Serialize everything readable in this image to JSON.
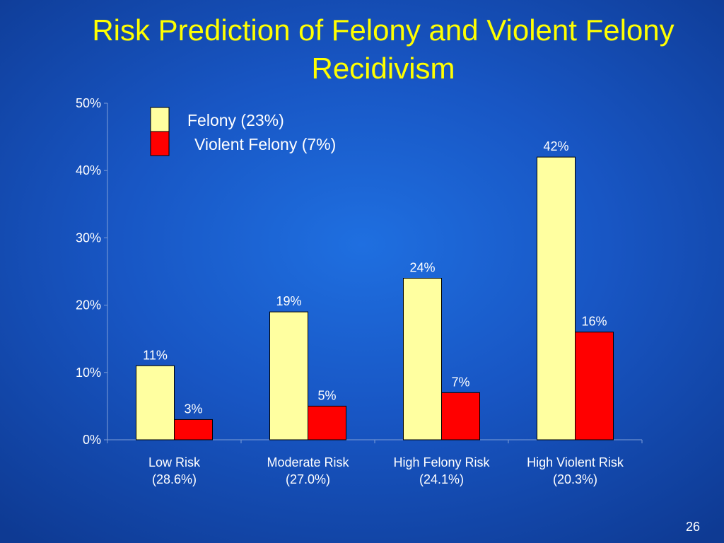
{
  "slide": {
    "title_line1": "Risk Prediction of Felony and Violent Felony",
    "title_line2": "Recidivism",
    "slide_number": "26"
  },
  "colors": {
    "title": "#ffff00",
    "text": "#ffffff",
    "felony": "#ffffa0",
    "violent_felony": "#ff0000"
  },
  "chart_data": {
    "type": "bar",
    "categories": [
      "Low Risk",
      "Moderate Risk",
      "High Felony Risk",
      "High Violent Risk"
    ],
    "category_sublabels": [
      "(28.6%)",
      "(27.0%)",
      "(24.1%)",
      "(20.3%)"
    ],
    "series": [
      {
        "name": "Felony (23%)",
        "values": [
          11,
          19,
          24,
          42
        ],
        "labels": [
          "11%",
          "19%",
          "24%",
          "42%"
        ]
      },
      {
        "name": "Violent Felony (7%)",
        "values": [
          3,
          5,
          7,
          16
        ],
        "labels": [
          "3%",
          "5%",
          "7%",
          "16%"
        ]
      }
    ],
    "y_ticks": [
      "0%",
      "10%",
      "20%",
      "30%",
      "40%",
      "50%"
    ],
    "ylim": [
      0,
      50
    ],
    "grid": false,
    "legend": "top-left"
  }
}
